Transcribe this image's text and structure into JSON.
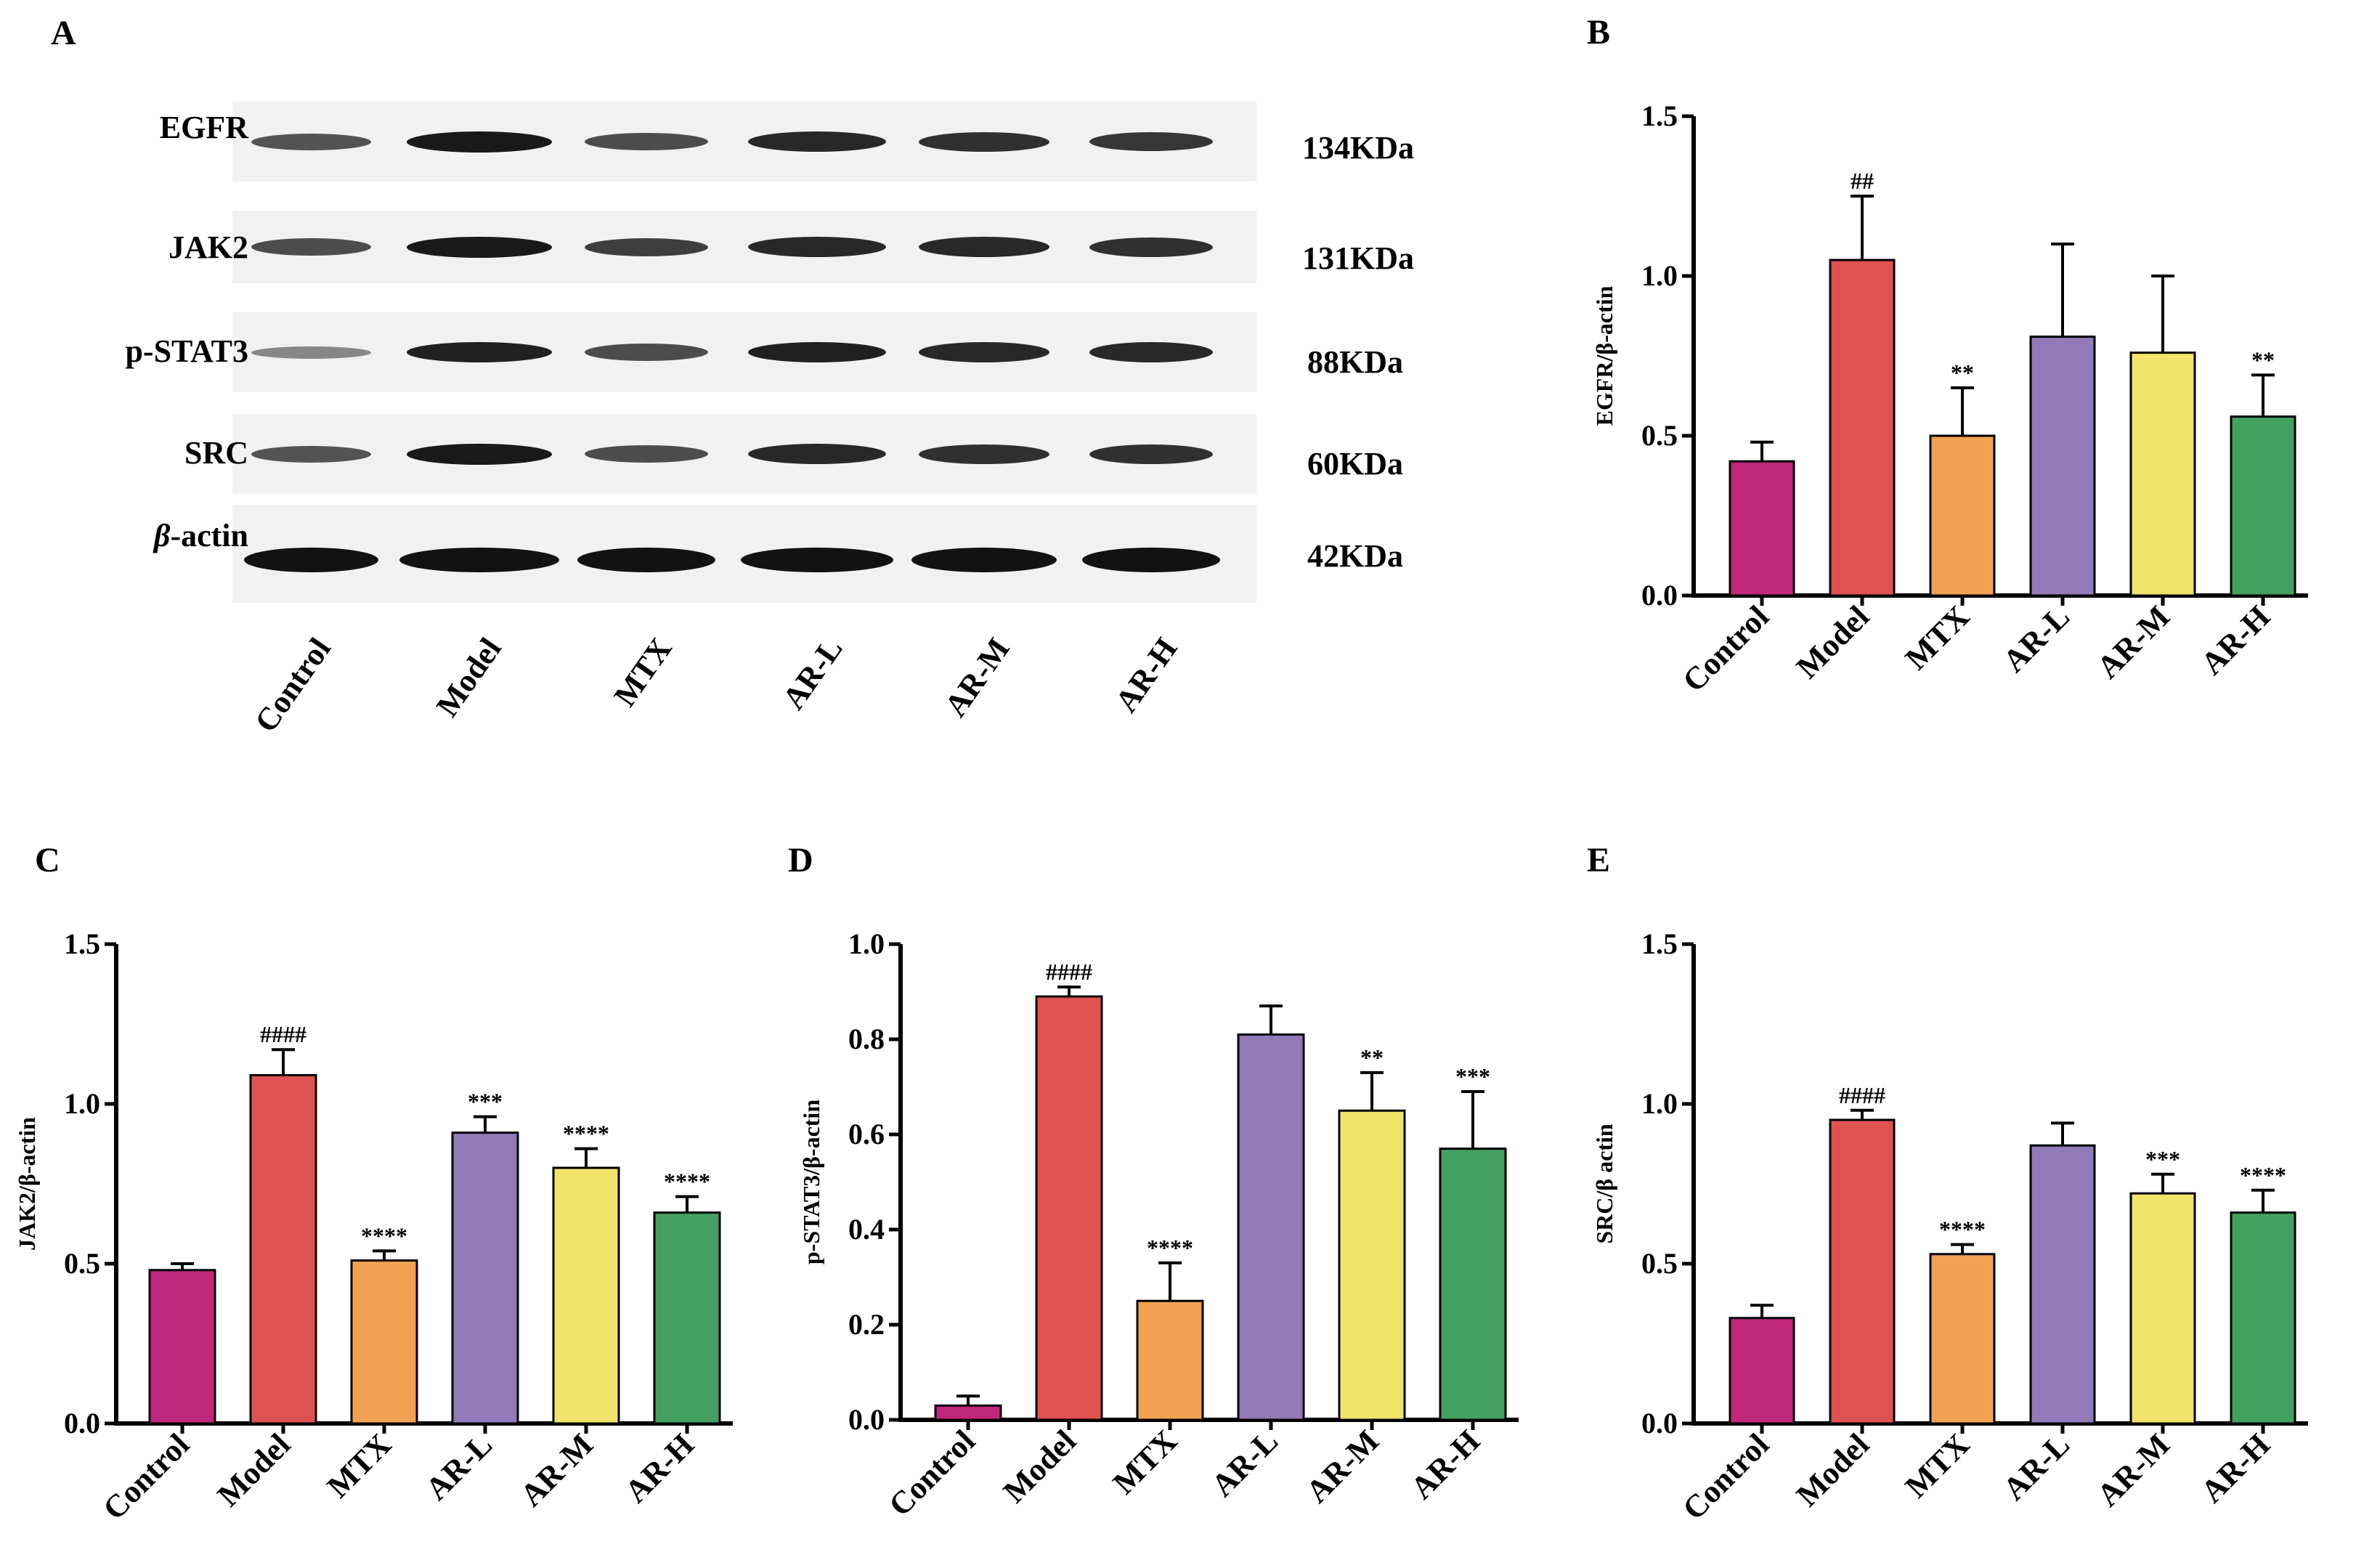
{
  "blot": {
    "letter": "A",
    "proteins": [
      {
        "name": "EGFR",
        "size": "134KDa",
        "intensity": [
          0.55,
          0.95,
          0.6,
          0.85,
          0.8,
          0.75
        ]
      },
      {
        "name": "JAK2",
        "size": "131KDa",
        "intensity": [
          0.6,
          0.95,
          0.7,
          0.85,
          0.85,
          0.8
        ]
      },
      {
        "name": "p-STAT3",
        "size": "88KDa",
        "intensity": [
          0.2,
          0.9,
          0.6,
          0.9,
          0.85,
          0.85
        ]
      },
      {
        "name": "SRC",
        "size": "60KDa",
        "intensity": [
          0.55,
          0.95,
          0.6,
          0.85,
          0.8,
          0.8
        ]
      },
      {
        "name": "β-actin",
        "name_greek": "β",
        "name_rest": "-actin",
        "size": "42KDa",
        "intensity": [
          1,
          1,
          1,
          1,
          1,
          1
        ]
      }
    ],
    "lanes": [
      "Control",
      "Model",
      "MTX",
      "AR-L",
      "AR-M",
      "AR-H"
    ]
  },
  "colors": {
    "Control": "#c0267a",
    "Model": "#e05252",
    "MTX": "#f2a152",
    "AR-L": "#9279b8",
    "AR-M": "#f0e46a",
    "AR-H": "#44a060"
  },
  "chart_data": [
    {
      "letter": "B",
      "type": "bar",
      "title": "",
      "xlabel": "",
      "ylabel": "EGFR/β-actin",
      "categories": [
        "Control",
        "Model",
        "MTX",
        "AR-L",
        "AR-M",
        "AR-H"
      ],
      "values": [
        0.42,
        1.05,
        0.5,
        0.81,
        0.76,
        0.56
      ],
      "errors": [
        0.06,
        0.2,
        0.15,
        0.29,
        0.24,
        0.13
      ],
      "annotations": [
        "",
        "##",
        "**",
        "",
        "",
        "**"
      ],
      "ylim": [
        0,
        1.5
      ],
      "yticks": [
        0.0,
        0.5,
        1.0,
        1.5
      ],
      "yticklabels": [
        "0.0",
        "0.5",
        "1.0",
        "1.5"
      ]
    },
    {
      "letter": "C",
      "type": "bar",
      "title": "",
      "xlabel": "",
      "ylabel": "JAK2/β-actin",
      "categories": [
        "Control",
        "Model",
        "MTX",
        "AR-L",
        "AR-M",
        "AR-H"
      ],
      "values": [
        0.48,
        1.09,
        0.51,
        0.91,
        0.8,
        0.66
      ],
      "errors": [
        0.02,
        0.08,
        0.03,
        0.05,
        0.06,
        0.05
      ],
      "annotations": [
        "",
        "####",
        "****",
        "***",
        "****",
        "****"
      ],
      "ylim": [
        0,
        1.5
      ],
      "yticks": [
        0.0,
        0.5,
        1.0,
        1.5
      ],
      "yticklabels": [
        "0.0",
        "0.5",
        "1.0",
        "1.5"
      ]
    },
    {
      "letter": "D",
      "type": "bar",
      "title": "",
      "xlabel": "",
      "ylabel": "p-STAT3/β-actin",
      "categories": [
        "Control",
        "Model",
        "MTX",
        "AR-L",
        "AR-M",
        "AR-H"
      ],
      "values": [
        0.03,
        0.89,
        0.25,
        0.81,
        0.65,
        0.57
      ],
      "errors": [
        0.02,
        0.02,
        0.08,
        0.06,
        0.08,
        0.12
      ],
      "annotations": [
        "",
        "####",
        "****",
        "",
        "**",
        "***"
      ],
      "ylim": [
        0,
        1.0
      ],
      "yticks": [
        0.0,
        0.2,
        0.4,
        0.6,
        0.8,
        1.0
      ],
      "yticklabels": [
        "0.0",
        "0.2",
        "0.4",
        "0.6",
        "0.8",
        "1.0"
      ]
    },
    {
      "letter": "E",
      "type": "bar",
      "title": "",
      "xlabel": "",
      "ylabel": "SRC/β actin",
      "categories": [
        "Control",
        "Model",
        "MTX",
        "AR-L",
        "AR-M",
        "AR-H"
      ],
      "values": [
        0.33,
        0.95,
        0.53,
        0.87,
        0.72,
        0.66
      ],
      "errors": [
        0.04,
        0.03,
        0.03,
        0.07,
        0.06,
        0.07
      ],
      "annotations": [
        "",
        "####",
        "****",
        "",
        "***",
        "****"
      ],
      "ylim": [
        0,
        1.5
      ],
      "yticks": [
        0.0,
        0.5,
        1.0,
        1.5
      ],
      "yticklabels": [
        "0.0",
        "0.5",
        "1.0",
        "1.5"
      ]
    }
  ]
}
